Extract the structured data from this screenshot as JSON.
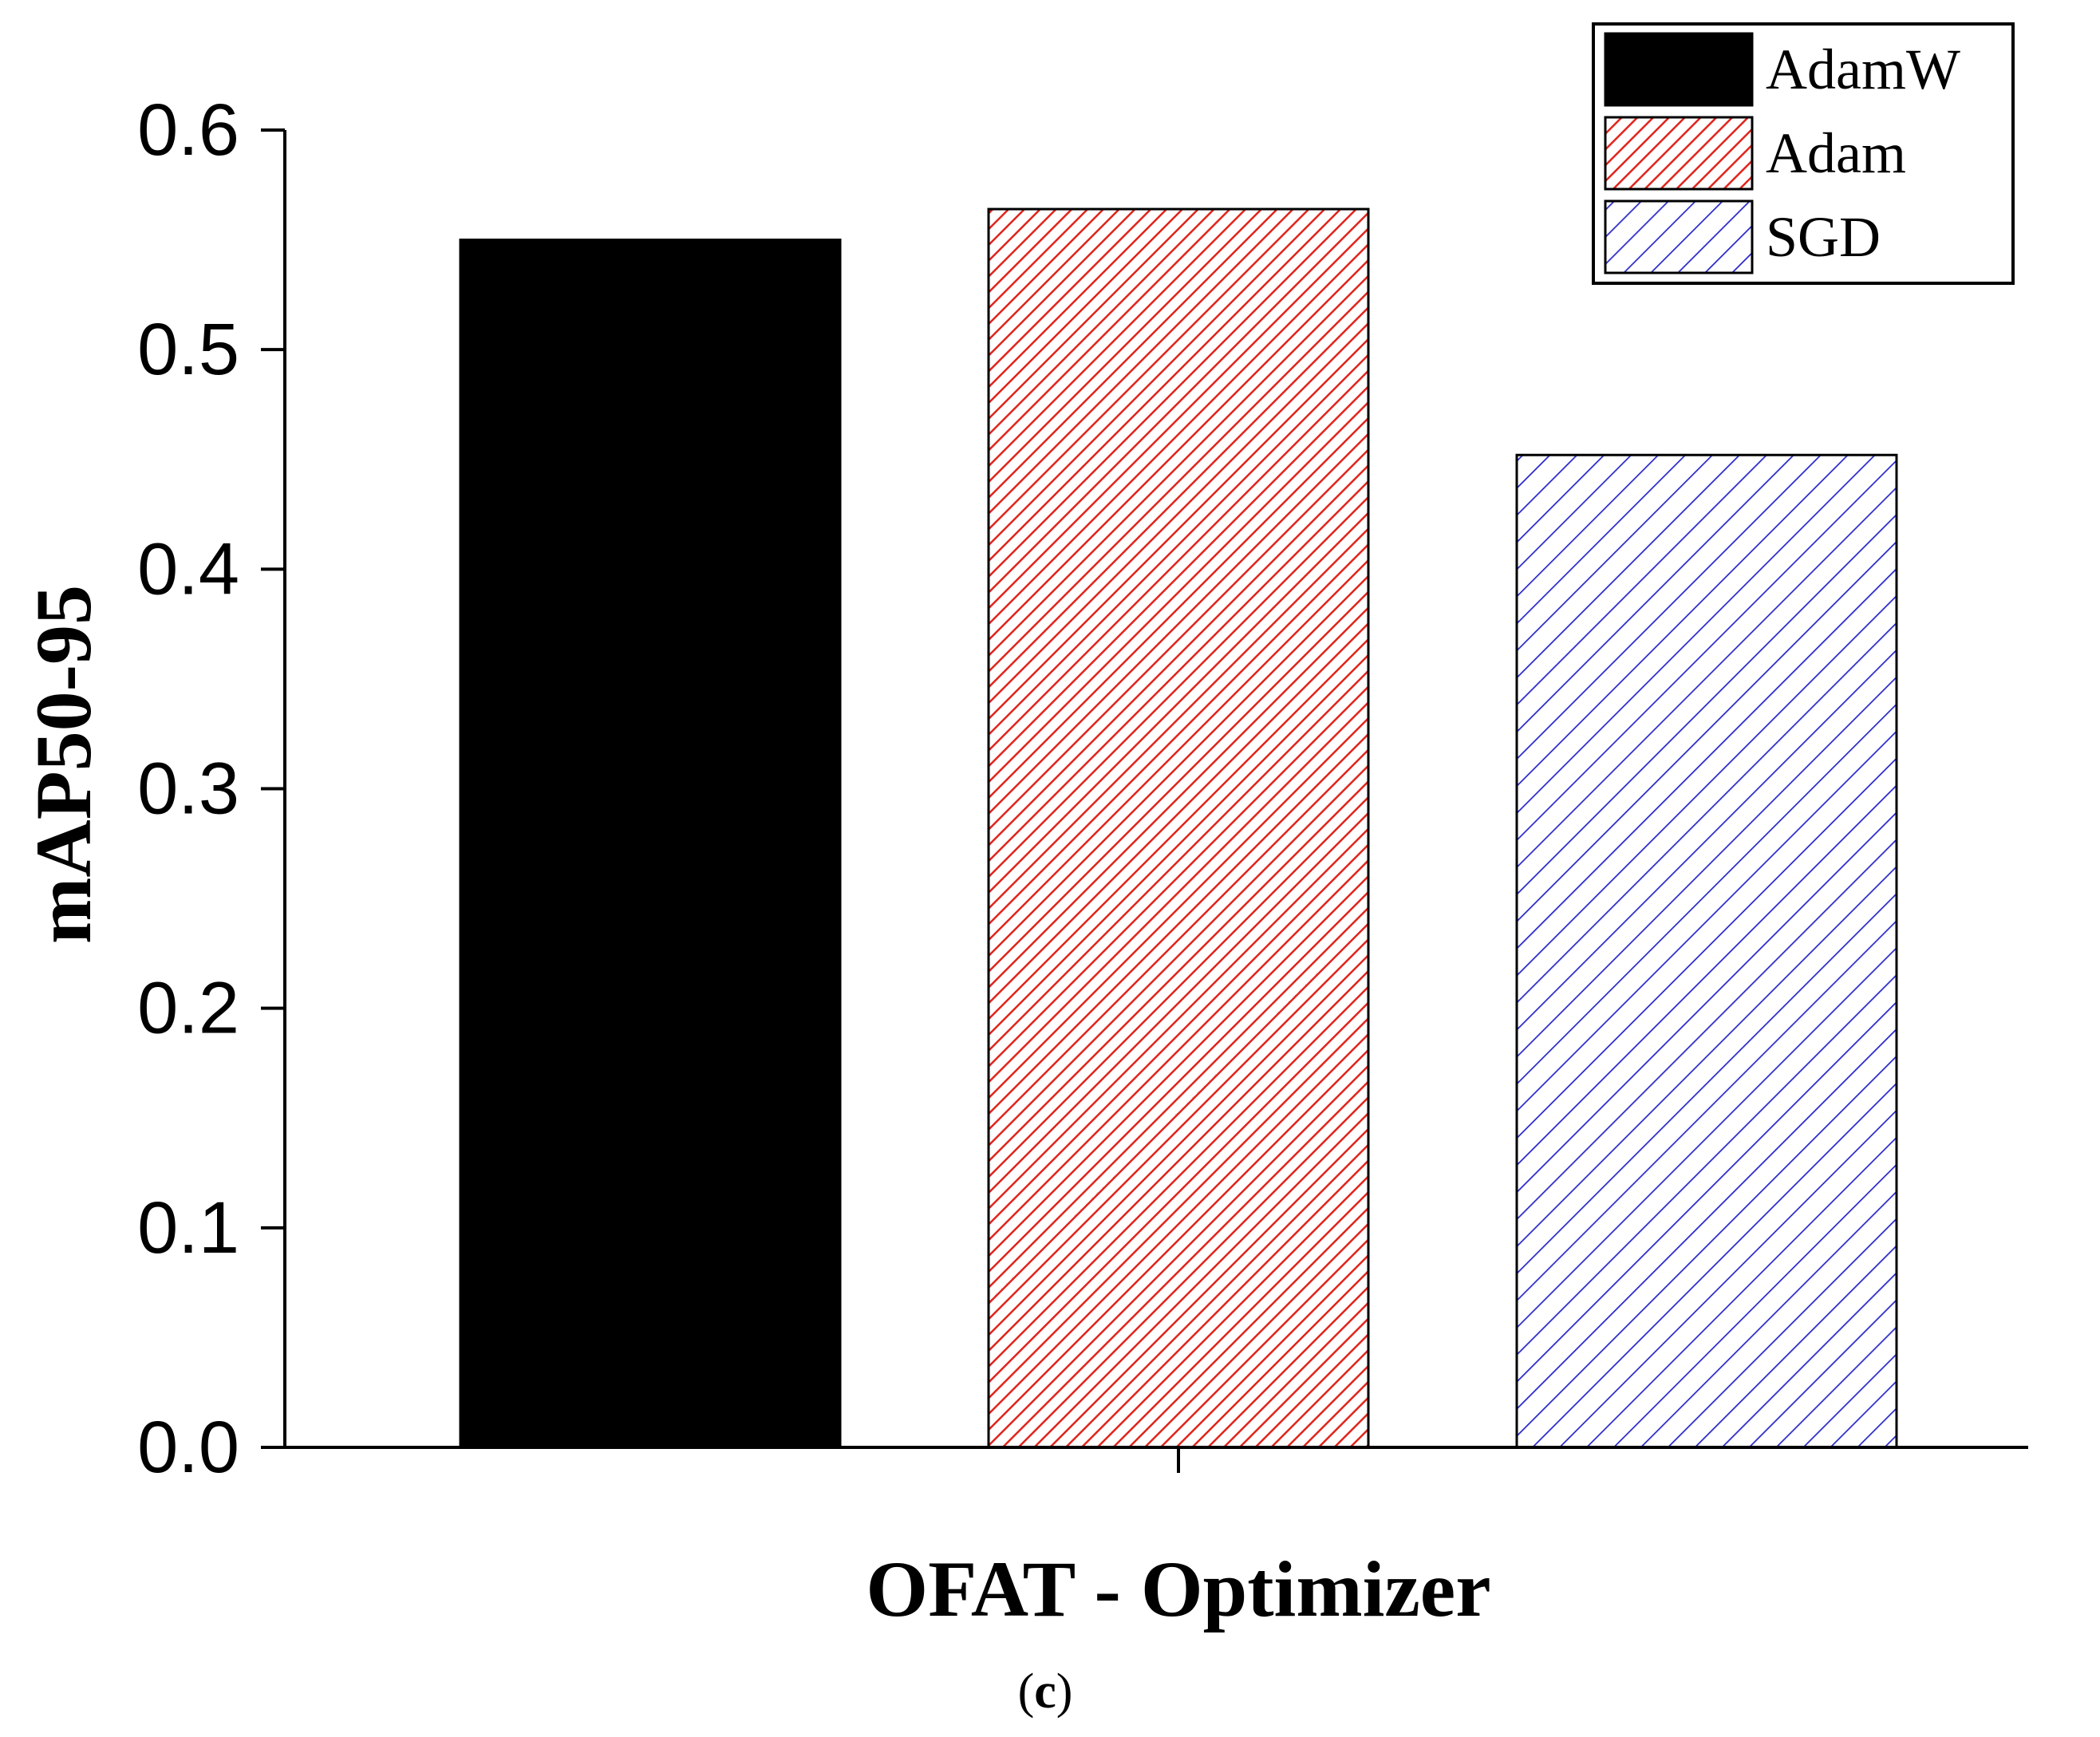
{
  "chart_data": {
    "type": "bar",
    "categories": [
      "OFAT - Optimizer"
    ],
    "series": [
      {
        "name": "AdamW",
        "values": [
          0.55
        ],
        "color": "#000000",
        "pattern": "solid"
      },
      {
        "name": "Adam",
        "values": [
          0.564
        ],
        "color": "#e0241b",
        "pattern": "dense-hatch"
      },
      {
        "name": "SGD",
        "values": [
          0.452
        ],
        "color": "#2a2ac8",
        "pattern": "sparse-hatch"
      }
    ],
    "xlabel": "OFAT - Optimizer",
    "ylabel": "mAP50-95",
    "ylim": [
      0,
      0.6
    ],
    "yticks": [
      "0.0",
      "0.1",
      "0.2",
      "0.3",
      "0.4",
      "0.5",
      "0.6"
    ],
    "grid": false,
    "legend_position": "top-right"
  },
  "panel_label": {
    "open": "(",
    "letter": "c",
    "close": ")"
  }
}
